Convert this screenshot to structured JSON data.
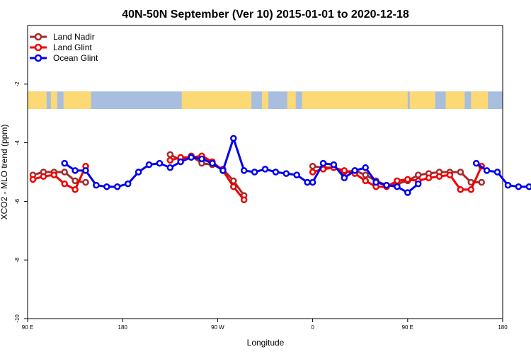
{
  "chart_data": {
    "type": "line",
    "title": "40N-50N September (Ver 10)   2015-01-01 to 2020-12-18",
    "xlabel": "Longitude",
    "ylabel": "XCO2 - MLO trend (ppm)",
    "xlim": [
      90,
      540
    ],
    "ylim": [
      -10,
      0
    ],
    "x_ticks": [
      {
        "value": 90,
        "label": "90 E"
      },
      {
        "value": 180,
        "label": "180"
      },
      {
        "value": 270,
        "label": "90 W"
      },
      {
        "value": 360,
        "label": "0"
      },
      {
        "value": 450,
        "label": "90 E"
      },
      {
        "value": 540,
        "label": "180"
      }
    ],
    "y_ticks": [
      {
        "value": -2,
        "label": "-2"
      },
      {
        "value": -4,
        "label": "-4"
      },
      {
        "value": -6,
        "label": "-6"
      },
      {
        "value": -8,
        "label": "-8"
      },
      {
        "value": -10,
        "label": "-10"
      }
    ],
    "map_strip": {
      "y_top": -2.25,
      "y_bottom": -2.85,
      "land_color": "#fcd975",
      "ocean_color": "#a8bedf"
    },
    "legend": {
      "position": "top-left"
    },
    "series": [
      {
        "name": "Land Nadir",
        "color": "#a52a2a",
        "segments": [
          [
            [
              95,
              -5.1
            ],
            [
              105,
              -5.0
            ],
            [
              115,
              -5.0
            ],
            [
              125,
              -5.0
            ],
            [
              135,
              -5.3
            ],
            [
              145,
              -5.35
            ]
          ],
          [
            [
              225,
              -4.4
            ],
            [
              235,
              -4.6
            ],
            [
              245,
              -4.45
            ],
            [
              255,
              -4.7
            ],
            [
              265,
              -4.75
            ],
            [
              275,
              -4.9
            ],
            [
              285,
              -5.3
            ],
            [
              295,
              -5.8
            ]
          ],
          [
            [
              360,
              -4.8
            ],
            [
              370,
              -4.85
            ],
            [
              380,
              -4.85
            ],
            [
              390,
              -5.0
            ],
            [
              400,
              -4.95
            ],
            [
              410,
              -5.1
            ],
            [
              420,
              -5.3
            ],
            [
              430,
              -5.45
            ],
            [
              440,
              -5.4
            ],
            [
              450,
              -5.3
            ],
            [
              460,
              -5.1
            ],
            [
              470,
              -5.05
            ],
            [
              480,
              -5.0
            ],
            [
              490,
              -5.0
            ],
            [
              500,
              -5.0
            ],
            [
              510,
              -5.35
            ],
            [
              520,
              -5.35
            ]
          ]
        ]
      },
      {
        "name": "Land Glint",
        "color": "#ee0000",
        "segments": [
          [
            [
              95,
              -5.25
            ],
            [
              105,
              -5.15
            ],
            [
              115,
              -5.1
            ],
            [
              125,
              -5.4
            ],
            [
              135,
              -5.6
            ],
            [
              145,
              -4.8
            ]
          ],
          [
            [
              225,
              -4.6
            ],
            [
              235,
              -4.5
            ],
            [
              245,
              -4.5
            ],
            [
              255,
              -4.45
            ],
            [
              265,
              -4.65
            ],
            [
              275,
              -4.95
            ],
            [
              285,
              -5.5
            ],
            [
              295,
              -5.95
            ]
          ],
          [
            [
              360,
              -5.0
            ],
            [
              370,
              -4.9
            ],
            [
              380,
              -4.85
            ],
            [
              390,
              -4.95
            ],
            [
              400,
              -5.05
            ],
            [
              410,
              -5.3
            ],
            [
              420,
              -5.5
            ],
            [
              430,
              -5.5
            ],
            [
              440,
              -5.3
            ],
            [
              450,
              -5.25
            ],
            [
              460,
              -5.3
            ],
            [
              470,
              -5.2
            ],
            [
              480,
              -5.15
            ],
            [
              490,
              -5.1
            ],
            [
              500,
              -5.6
            ],
            [
              510,
              -5.6
            ],
            [
              520,
              -4.8
            ]
          ]
        ]
      },
      {
        "name": "Ocean Glint",
        "color": "#0000ee",
        "segments": [
          [
            [
              125,
              -4.7
            ],
            [
              135,
              -4.95
            ],
            [
              145,
              -4.95
            ],
            [
              155,
              -5.45
            ],
            [
              165,
              -5.5
            ],
            [
              175,
              -5.5
            ],
            [
              185,
              -5.4
            ],
            [
              195,
              -5.0
            ],
            [
              205,
              -4.75
            ],
            [
              215,
              -4.7
            ],
            [
              225,
              -4.85
            ],
            [
              235,
              -4.65
            ],
            [
              245,
              -4.5
            ],
            [
              255,
              -4.55
            ],
            [
              265,
              -4.7
            ],
            [
              275,
              -4.95
            ],
            [
              285,
              -3.85
            ],
            [
              295,
              -4.95
            ],
            [
              305,
              -5.0
            ],
            [
              315,
              -4.9
            ],
            [
              325,
              -5.0
            ],
            [
              335,
              -5.05
            ],
            [
              345,
              -5.1
            ],
            [
              355,
              -5.35
            ]
          ],
          [
            [
              360,
              -5.35
            ],
            [
              370,
              -4.7
            ],
            [
              380,
              -4.75
            ],
            [
              390,
              -5.2
            ],
            [
              400,
              -4.95
            ],
            [
              410,
              -4.85
            ],
            [
              420,
              -5.35
            ],
            [
              430,
              -5.45
            ],
            [
              440,
              -5.5
            ],
            [
              450,
              -5.7
            ],
            [
              460,
              -5.4
            ]
          ],
          [
            [
              515,
              -4.7
            ],
            [
              525,
              -4.95
            ],
            [
              535,
              -5.0
            ],
            [
              545,
              -5.45
            ],
            [
              555,
              -5.5
            ],
            [
              565,
              -5.5
            ]
          ]
        ]
      }
    ]
  }
}
